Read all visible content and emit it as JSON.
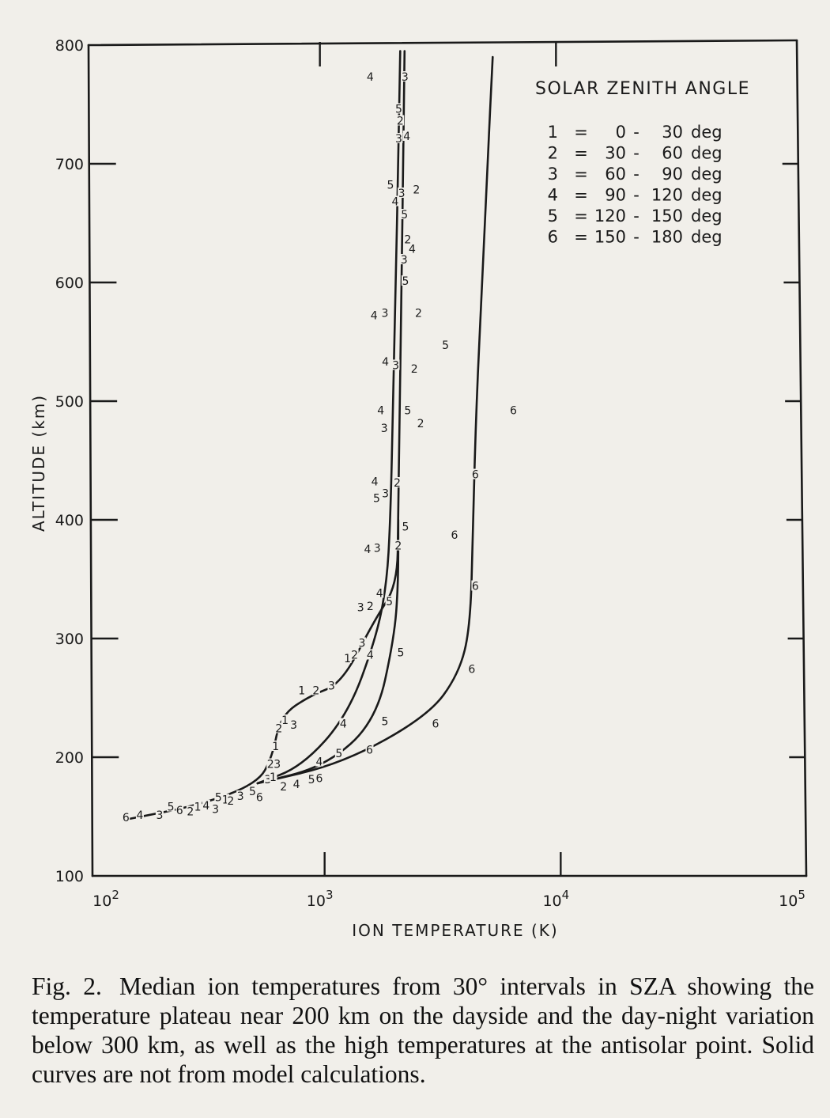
{
  "chart_data": {
    "type": "line",
    "xlabel": "ION TEMPERATURE (K)",
    "ylabel": "ALTITUDE (km)",
    "xscale": "log",
    "xlim": [
      100,
      100000
    ],
    "ylim": [
      100,
      800
    ],
    "x_ticks": [
      {
        "base": "10",
        "exp": "2",
        "value": 100
      },
      {
        "base": "10",
        "exp": "3",
        "value": 1000
      },
      {
        "base": "10",
        "exp": "4",
        "value": 10000
      },
      {
        "base": "10",
        "exp": "5",
        "value": 100000
      }
    ],
    "y_ticks": [
      100,
      200,
      300,
      400,
      500,
      600,
      700,
      800
    ],
    "legend": {
      "title": "SOLAR ZENITH ANGLE",
      "placement": "top-right",
      "rows": [
        {
          "id": "1",
          "eq": "=",
          "from": "0",
          "dash": "-",
          "to": "30",
          "unit": "deg"
        },
        {
          "id": "2",
          "eq": "=",
          "from": "30",
          "dash": "-",
          "to": "60",
          "unit": "deg"
        },
        {
          "id": "3",
          "eq": "=",
          "from": "60",
          "dash": "-",
          "to": "90",
          "unit": "deg"
        },
        {
          "id": "4",
          "eq": "=",
          "from": "90",
          "dash": "-",
          "to": "120",
          "unit": "deg"
        },
        {
          "id": "5",
          "eq": "=",
          "from": "120",
          "dash": "-",
          "to": "150",
          "unit": "deg"
        },
        {
          "id": "6",
          "eq": "=",
          "from": "150",
          "dash": "-",
          "to": "180",
          "unit": "deg"
        }
      ]
    },
    "curves": [
      {
        "name": "1-2-3",
        "points": [
          [
            140,
            147
          ],
          [
            300,
            160
          ],
          [
            520,
            178
          ],
          [
            600,
            200
          ],
          [
            650,
            235
          ],
          [
            870,
            252
          ],
          [
            1180,
            262
          ],
          [
            1620,
            315
          ],
          [
            2030,
            345
          ],
          [
            2050,
            400
          ],
          [
            2080,
            500
          ],
          [
            2120,
            600
          ],
          [
            2150,
            700
          ],
          [
            2180,
            795
          ]
        ]
      },
      {
        "name": "4",
        "points": [
          [
            520,
            178
          ],
          [
            800,
            192
          ],
          [
            1250,
            235
          ],
          [
            1650,
            300
          ],
          [
            1830,
            345
          ],
          [
            1900,
            400
          ],
          [
            1950,
            500
          ],
          [
            2000,
            600
          ],
          [
            2050,
            700
          ],
          [
            2090,
            795
          ]
        ]
      },
      {
        "name": "5",
        "points": [
          [
            520,
            178
          ],
          [
            1000,
            192
          ],
          [
            1650,
            230
          ],
          [
            1970,
            300
          ],
          [
            2050,
            345
          ],
          [
            2050,
            400
          ]
        ]
      },
      {
        "name": "6",
        "points": [
          [
            520,
            178
          ],
          [
            1200,
            195
          ],
          [
            2750,
            235
          ],
          [
            3700,
            270
          ],
          [
            4150,
            310
          ],
          [
            4250,
            400
          ],
          [
            4400,
            500
          ],
          [
            4650,
            600
          ],
          [
            4900,
            700
          ],
          [
            5150,
            790
          ]
        ]
      }
    ],
    "point_labels": [
      {
        "text": "4",
        "x": 1560,
        "y": 772
      },
      {
        "text": "3",
        "x": 2190,
        "y": 772
      },
      {
        "text": "5",
        "x": 2060,
        "y": 745
      },
      {
        "text": "2",
        "x": 2090,
        "y": 735
      },
      {
        "text": "3",
        "x": 2060,
        "y": 720
      },
      {
        "text": "4",
        "x": 2230,
        "y": 722
      },
      {
        "text": "5",
        "x": 1900,
        "y": 681
      },
      {
        "text": "3",
        "x": 2120,
        "y": 674
      },
      {
        "text": "2",
        "x": 2450,
        "y": 677
      },
      {
        "text": "4",
        "x": 1990,
        "y": 667
      },
      {
        "text": "5",
        "x": 2180,
        "y": 656
      },
      {
        "text": "2",
        "x": 2250,
        "y": 635
      },
      {
        "text": "4",
        "x": 2350,
        "y": 627
      },
      {
        "text": "3",
        "x": 2170,
        "y": 618
      },
      {
        "text": "5",
        "x": 2200,
        "y": 600
      },
      {
        "text": "4",
        "x": 1620,
        "y": 571
      },
      {
        "text": "3",
        "x": 1800,
        "y": 573
      },
      {
        "text": "2",
        "x": 2500,
        "y": 573
      },
      {
        "text": "5",
        "x": 3250,
        "y": 546
      },
      {
        "text": "4",
        "x": 1810,
        "y": 532
      },
      {
        "text": "3",
        "x": 2000,
        "y": 529
      },
      {
        "text": "2",
        "x": 2400,
        "y": 526
      },
      {
        "text": "4",
        "x": 1730,
        "y": 491
      },
      {
        "text": "5",
        "x": 2250,
        "y": 491
      },
      {
        "text": "2",
        "x": 2550,
        "y": 480
      },
      {
        "text": "3",
        "x": 1790,
        "y": 476
      },
      {
        "text": "6",
        "x": 6300,
        "y": 491
      },
      {
        "text": "4",
        "x": 1630,
        "y": 431
      },
      {
        "text": "2",
        "x": 2030,
        "y": 430
      },
      {
        "text": "3",
        "x": 1810,
        "y": 421
      },
      {
        "text": "5",
        "x": 1660,
        "y": 417
      },
      {
        "text": "6",
        "x": 4350,
        "y": 437
      },
      {
        "text": "5",
        "x": 2200,
        "y": 393
      },
      {
        "text": "6",
        "x": 3550,
        "y": 386
      },
      {
        "text": "4",
        "x": 1520,
        "y": 374
      },
      {
        "text": "3",
        "x": 1670,
        "y": 375
      },
      {
        "text": "2",
        "x": 2050,
        "y": 377
      },
      {
        "text": "4",
        "x": 1710,
        "y": 337
      },
      {
        "text": "5",
        "x": 1880,
        "y": 330
      },
      {
        "text": "6",
        "x": 4350,
        "y": 343
      },
      {
        "text": "3",
        "x": 1420,
        "y": 325
      },
      {
        "text": "2",
        "x": 1560,
        "y": 326
      },
      {
        "text": "3",
        "x": 1440,
        "y": 295
      },
      {
        "text": "1",
        "x": 1250,
        "y": 282
      },
      {
        "text": "2",
        "x": 1340,
        "y": 285
      },
      {
        "text": "4",
        "x": 1560,
        "y": 285
      },
      {
        "text": "5",
        "x": 2100,
        "y": 287
      },
      {
        "text": "6",
        "x": 4200,
        "y": 273
      },
      {
        "text": "1",
        "x": 800,
        "y": 255
      },
      {
        "text": "2",
        "x": 920,
        "y": 255
      },
      {
        "text": "3",
        "x": 1070,
        "y": 259
      },
      {
        "text": "1",
        "x": 680,
        "y": 230
      },
      {
        "text": "2",
        "x": 640,
        "y": 223
      },
      {
        "text": "3",
        "x": 740,
        "y": 226
      },
      {
        "text": "4",
        "x": 1200,
        "y": 227
      },
      {
        "text": "5",
        "x": 1800,
        "y": 229
      },
      {
        "text": "6",
        "x": 2950,
        "y": 227
      },
      {
        "text": "1",
        "x": 620,
        "y": 208
      },
      {
        "text": "2",
        "x": 590,
        "y": 193
      },
      {
        "text": "3",
        "x": 630,
        "y": 193
      },
      {
        "text": "4",
        "x": 950,
        "y": 195
      },
      {
        "text": "5",
        "x": 1150,
        "y": 202
      },
      {
        "text": "6",
        "x": 1550,
        "y": 205
      },
      {
        "text": "3",
        "x": 575,
        "y": 180
      },
      {
        "text": "1",
        "x": 605,
        "y": 182
      },
      {
        "text": "2",
        "x": 670,
        "y": 174
      },
      {
        "text": "4",
        "x": 760,
        "y": 176
      },
      {
        "text": "5",
        "x": 880,
        "y": 180
      },
      {
        "text": "6",
        "x": 950,
        "y": 181
      },
      {
        "text": "5",
        "x": 355,
        "y": 165
      },
      {
        "text": "1",
        "x": 380,
        "y": 163
      },
      {
        "text": "2",
        "x": 400,
        "y": 162
      },
      {
        "text": "3",
        "x": 440,
        "y": 166
      },
      {
        "text": "5",
        "x": 495,
        "y": 170
      },
      {
        "text": "6",
        "x": 530,
        "y": 165
      },
      {
        "text": "4",
        "x": 315,
        "y": 158
      },
      {
        "text": "3",
        "x": 345,
        "y": 155
      },
      {
        "text": "1",
        "x": 290,
        "y": 157
      },
      {
        "text": "2",
        "x": 270,
        "y": 153
      },
      {
        "text": "6",
        "x": 243,
        "y": 154
      },
      {
        "text": "5",
        "x": 223,
        "y": 157
      },
      {
        "text": "3",
        "x": 200,
        "y": 150
      },
      {
        "text": "4",
        "x": 165,
        "y": 150
      },
      {
        "text": "6",
        "x": 144,
        "y": 148
      }
    ]
  },
  "caption": {
    "label": "Fig. 2.",
    "text": "Median ion temperatures from 30° intervals in SZA showing the temperature plateau near 200 km on the dayside and the day-night variation below 300 km, as well as the high temperatures at the antisolar point. Solid curves are not from model calculations."
  }
}
